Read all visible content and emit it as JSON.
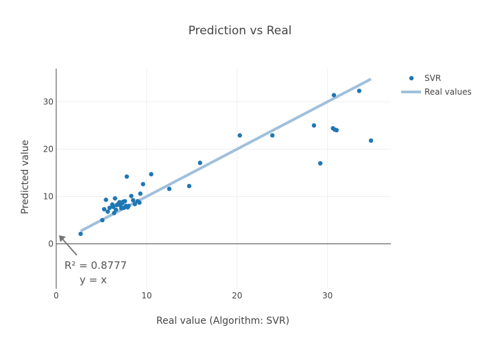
{
  "chart_data": {
    "type": "scatter",
    "title": "Prediction vs Real",
    "xlabel": "Real value (Algorithm: SVR)",
    "ylabel": "Predicted value",
    "xlim": [
      0,
      37
    ],
    "ylim": [
      -9.5,
      37
    ],
    "x_ticks": [
      0,
      10,
      20,
      30
    ],
    "y_ticks": [
      0,
      10,
      20,
      30
    ],
    "grid": true,
    "legend_position": "top-right",
    "series": [
      {
        "name": "SVR",
        "mode": "markers",
        "color": "#1f77b4",
        "points": [
          [
            2.7,
            2.1
          ],
          [
            5.1,
            5.0
          ],
          [
            5.3,
            7.3
          ],
          [
            5.5,
            9.3
          ],
          [
            5.7,
            6.8
          ],
          [
            5.9,
            7.6
          ],
          [
            6.2,
            8.3
          ],
          [
            6.3,
            7.8
          ],
          [
            6.4,
            6.5
          ],
          [
            6.5,
            9.6
          ],
          [
            6.6,
            7.2
          ],
          [
            6.7,
            8.2
          ],
          [
            6.9,
            8.5
          ],
          [
            7.0,
            8.8
          ],
          [
            7.1,
            8.1
          ],
          [
            7.2,
            7.5
          ],
          [
            7.3,
            8.6
          ],
          [
            7.4,
            8.9
          ],
          [
            7.5,
            7.6
          ],
          [
            7.6,
            9.0
          ],
          [
            7.7,
            8.0
          ],
          [
            7.8,
            14.2
          ],
          [
            7.9,
            7.7
          ],
          [
            8.0,
            8.0
          ],
          [
            8.3,
            10.1
          ],
          [
            8.5,
            9.2
          ],
          [
            8.7,
            8.4
          ],
          [
            9.0,
            9.0
          ],
          [
            9.2,
            8.7
          ],
          [
            9.3,
            10.6
          ],
          [
            9.6,
            12.6
          ],
          [
            10.5,
            14.7
          ],
          [
            12.5,
            11.6
          ],
          [
            14.7,
            12.2
          ],
          [
            15.9,
            17.1
          ],
          [
            20.3,
            22.9
          ],
          [
            23.9,
            22.9
          ],
          [
            28.5,
            25.0
          ],
          [
            29.2,
            17.0
          ],
          [
            30.6,
            24.4
          ],
          [
            30.7,
            31.4
          ],
          [
            30.8,
            24.1
          ],
          [
            31.0,
            24.0
          ],
          [
            33.5,
            32.3
          ],
          [
            34.8,
            21.8
          ]
        ]
      },
      {
        "name": "Real values",
        "mode": "lines",
        "color": "#9fc0dc",
        "points": [
          [
            2.7,
            2.7
          ],
          [
            34.8,
            34.8
          ]
        ]
      }
    ],
    "annotation": {
      "text": "R² = 0.8777",
      "text_line2": "y  = x",
      "arrow_to": [
        0.3,
        1.8
      ]
    }
  }
}
